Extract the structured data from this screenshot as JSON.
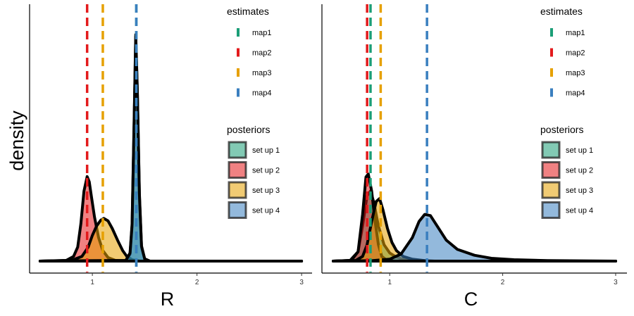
{
  "chart_data": {
    "type": "density",
    "shared_ylabel": "density",
    "legends": {
      "estimates": {
        "title": "estimates",
        "items": [
          {
            "label": "map1",
            "color": "#1b9e77"
          },
          {
            "label": "map2",
            "color": "#e31a1c"
          },
          {
            "label": "map3",
            "color": "#e6a000"
          },
          {
            "label": "map4",
            "color": "#3a7fbf"
          }
        ]
      },
      "posteriors": {
        "title": "posteriors",
        "items": [
          {
            "label": "set up 1",
            "color": "#1b9e77"
          },
          {
            "label": "set up 2",
            "color": "#e31a1c"
          },
          {
            "label": "set up 3",
            "color": "#e6a000"
          },
          {
            "label": "set up 4",
            "color": "#3a7fbf"
          }
        ]
      }
    },
    "panels": [
      {
        "xlabel": "R",
        "xlim": [
          0.4,
          3.1
        ],
        "ylim": [
          0,
          1.1
        ],
        "xticks": [
          1,
          2,
          3
        ],
        "xtick_labels": [
          "1",
          "2",
          "3"
        ],
        "estimates": [
          {
            "name": "map1",
            "value": 1.42,
            "color": "#1b9e77"
          },
          {
            "name": "map2",
            "value": 0.95,
            "color": "#e31a1c"
          },
          {
            "name": "map3",
            "value": 1.1,
            "color": "#e6a000"
          },
          {
            "name": "map4",
            "value": 1.42,
            "color": "#3a7fbf"
          }
        ],
        "densities": [
          {
            "name": "set up 2",
            "color": "#e31a1c",
            "points": [
              [
                0.5,
                0
              ],
              [
                0.75,
                0.003
              ],
              [
                0.82,
                0.02
              ],
              [
                0.86,
                0.06
              ],
              [
                0.89,
                0.16
              ],
              [
                0.92,
                0.3
              ],
              [
                0.95,
                0.362
              ],
              [
                0.97,
                0.34
              ],
              [
                0.99,
                0.28
              ],
              [
                1.02,
                0.19
              ],
              [
                1.06,
                0.1
              ],
              [
                1.1,
                0.045
              ],
              [
                1.15,
                0.015
              ],
              [
                1.22,
                0.003
              ],
              [
                1.3,
                0
              ],
              [
                3,
                0
              ]
            ]
          },
          {
            "name": "set up 3",
            "color": "#e6a000",
            "points": [
              [
                0.5,
                0
              ],
              [
                0.8,
                0.003
              ],
              [
                0.9,
                0.02
              ],
              [
                0.96,
                0.06
              ],
              [
                1.0,
                0.11
              ],
              [
                1.04,
                0.15
              ],
              [
                1.08,
                0.175
              ],
              [
                1.11,
                0.183
              ],
              [
                1.15,
                0.172
              ],
              [
                1.19,
                0.14
              ],
              [
                1.24,
                0.09
              ],
              [
                1.29,
                0.045
              ],
              [
                1.33,
                0.02
              ],
              [
                1.38,
                0.006
              ],
              [
                1.45,
                0
              ],
              [
                3,
                0
              ]
            ]
          },
          {
            "name": "set up 1",
            "color": "#1b9e77",
            "points": [
              [
                0.5,
                0
              ],
              [
                1.32,
                0.002
              ],
              [
                1.36,
                0.03
              ],
              [
                1.38,
                0.15
              ],
              [
                1.4,
                0.6
              ],
              [
                1.415,
                0.962
              ],
              [
                1.43,
                0.72
              ],
              [
                1.45,
                0.28
              ],
              [
                1.47,
                0.06
              ],
              [
                1.5,
                0.008
              ],
              [
                1.55,
                0
              ],
              [
                3,
                0
              ]
            ]
          },
          {
            "name": "set up 4",
            "color": "#3a7fbf",
            "points": [
              [
                0.5,
                0
              ],
              [
                1.32,
                0.003
              ],
              [
                1.36,
                0.035
              ],
              [
                1.38,
                0.16
              ],
              [
                1.4,
                0.62
              ],
              [
                1.415,
                0.97
              ],
              [
                1.43,
                0.73
              ],
              [
                1.45,
                0.29
              ],
              [
                1.47,
                0.065
              ],
              [
                1.5,
                0.01
              ],
              [
                1.55,
                0
              ],
              [
                3,
                0
              ]
            ]
          }
        ]
      },
      {
        "xlabel": "C",
        "xlim": [
          0.4,
          3.1
        ],
        "ylim": [
          0,
          1.1
        ],
        "xticks": [
          1,
          2,
          3
        ],
        "xtick_labels": [
          "1",
          "2",
          "3"
        ],
        "estimates": [
          {
            "name": "map1",
            "value": 0.83,
            "color": "#1b9e77"
          },
          {
            "name": "map2",
            "value": 0.8,
            "color": "#e31a1c"
          },
          {
            "name": "map3",
            "value": 0.92,
            "color": "#e6a000"
          },
          {
            "name": "map4",
            "value": 1.33,
            "color": "#3a7fbf"
          }
        ],
        "densities": [
          {
            "name": "set up 1",
            "color": "#1b9e77",
            "points": [
              [
                0.5,
                0
              ],
              [
                0.65,
                0.003
              ],
              [
                0.72,
                0.04
              ],
              [
                0.76,
                0.15
              ],
              [
                0.8,
                0.28
              ],
              [
                0.83,
                0.3
              ],
              [
                0.86,
                0.25
              ],
              [
                0.9,
                0.15
              ],
              [
                0.95,
                0.07
              ],
              [
                1.0,
                0.035
              ],
              [
                1.05,
                0.02
              ],
              [
                1.1,
                0.01
              ],
              [
                1.2,
                0.004
              ],
              [
                1.4,
                0
              ],
              [
                3,
                0
              ]
            ]
          },
          {
            "name": "set up 2",
            "color": "#e31a1c",
            "points": [
              [
                0.5,
                0
              ],
              [
                0.66,
                0.003
              ],
              [
                0.72,
                0.04
              ],
              [
                0.76,
                0.2
              ],
              [
                0.79,
                0.36
              ],
              [
                0.81,
                0.373
              ],
              [
                0.84,
                0.3
              ],
              [
                0.87,
                0.17
              ],
              [
                0.9,
                0.07
              ],
              [
                0.93,
                0.02
              ],
              [
                0.97,
                0.005
              ],
              [
                1.05,
                0
              ],
              [
                3,
                0
              ]
            ]
          },
          {
            "name": "set up 3",
            "color": "#e6a000",
            "points": [
              [
                0.5,
                0
              ],
              [
                0.7,
                0.003
              ],
              [
                0.76,
                0.02
              ],
              [
                0.8,
                0.07
              ],
              [
                0.84,
                0.17
              ],
              [
                0.88,
                0.255
              ],
              [
                0.91,
                0.268
              ],
              [
                0.94,
                0.22
              ],
              [
                0.98,
                0.14
              ],
              [
                1.02,
                0.08
              ],
              [
                1.06,
                0.045
              ],
              [
                1.12,
                0.02
              ],
              [
                1.2,
                0.008
              ],
              [
                1.35,
                0
              ],
              [
                3,
                0
              ]
            ]
          },
          {
            "name": "set up 4",
            "color": "#3a7fbf",
            "points": [
              [
                0.5,
                0
              ],
              [
                0.85,
                0.002
              ],
              [
                1.0,
                0.008
              ],
              [
                1.1,
                0.03
              ],
              [
                1.2,
                0.1
              ],
              [
                1.26,
                0.17
              ],
              [
                1.31,
                0.2
              ],
              [
                1.36,
                0.195
              ],
              [
                1.42,
                0.15
              ],
              [
                1.5,
                0.09
              ],
              [
                1.6,
                0.05
              ],
              [
                1.75,
                0.025
              ],
              [
                1.9,
                0.012
              ],
              [
                2.1,
                0.006
              ],
              [
                2.4,
                0.002
              ],
              [
                3.0,
                0
              ]
            ]
          }
        ]
      }
    ]
  }
}
